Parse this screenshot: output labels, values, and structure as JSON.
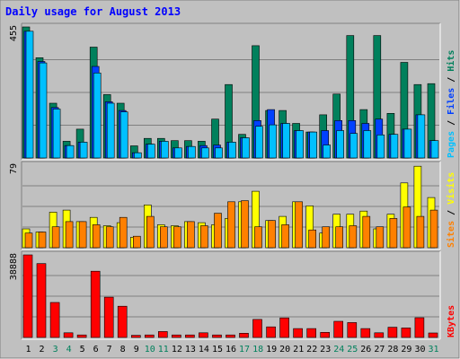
{
  "title": "Daily usage for August 2013",
  "colors": {
    "background": "#c0c0c0",
    "frame": "#808080",
    "title": "#0000ff",
    "hits": "#00805c",
    "files": "#0040ff",
    "pages": "#00c0ff",
    "visits": "#ffff00",
    "sites": "#ff8000",
    "kbytes": "#ff0000",
    "weekend_day": "#00805c",
    "weekday": "#000000"
  },
  "chart_data": [
    {
      "type": "bar",
      "panel": "top",
      "max_label": "455",
      "ylim": [
        0,
        455
      ],
      "legend": [
        {
          "text": "Pages",
          "color": "#00c0ff"
        },
        {
          "text": " / ",
          "color": "#000000"
        },
        {
          "text": "Files",
          "color": "#0040ff"
        },
        {
          "text": " / ",
          "color": "#000000"
        },
        {
          "text": "Hits",
          "color": "#00805c"
        }
      ],
      "categories": [
        "1",
        "2",
        "3",
        "4",
        "5",
        "6",
        "7",
        "8",
        "9",
        "10",
        "11",
        "12",
        "13",
        "14",
        "15",
        "16",
        "17",
        "18",
        "19",
        "20",
        "21",
        "22",
        "23",
        "24",
        "25",
        "26",
        "27",
        "28",
        "29",
        "30",
        "31"
      ],
      "series": [
        {
          "key": "hits",
          "color": "#00805c",
          "values": [
            455,
            348,
            190,
            58,
            100,
            385,
            220,
            190,
            42,
            68,
            68,
            60,
            60,
            58,
            135,
            255,
            82,
            390,
            165,
            165,
            120,
            90,
            150,
            222,
            425,
            168,
            425,
            155,
            332,
            255,
            258
          ]
        },
        {
          "key": "files",
          "color": "#0040ff",
          "values": [
            440,
            335,
            175,
            43,
            55,
            318,
            195,
            165,
            18,
            48,
            58,
            35,
            40,
            43,
            45,
            55,
            70,
            130,
            168,
            120,
            95,
            90,
            95,
            130,
            130,
            120,
            135,
            82,
            100,
            150,
            60
          ]
        },
        {
          "key": "pages",
          "color": "#00c0ff",
          "values": [
            440,
            330,
            170,
            43,
            55,
            295,
            190,
            160,
            18,
            48,
            58,
            35,
            40,
            35,
            35,
            55,
            70,
            110,
            115,
            120,
            95,
            90,
            45,
            95,
            85,
            95,
            80,
            82,
            100,
            150,
            60
          ]
        }
      ]
    },
    {
      "type": "bar",
      "panel": "middle",
      "max_label": "79",
      "ylim": [
        0,
        79
      ],
      "legend": [
        {
          "text": "Sites",
          "color": "#ff8000"
        },
        {
          "text": " / ",
          "color": "#000000"
        },
        {
          "text": "Visits",
          "color": "#ffff00"
        }
      ],
      "categories": [
        "1",
        "2",
        "3",
        "4",
        "5",
        "6",
        "7",
        "8",
        "9",
        "10",
        "11",
        "12",
        "13",
        "14",
        "15",
        "16",
        "17",
        "18",
        "19",
        "20",
        "21",
        "22",
        "23",
        "24",
        "25",
        "26",
        "27",
        "28",
        "29",
        "30",
        "31"
      ],
      "series": [
        {
          "key": "visits",
          "color": "#ffff00",
          "values": [
            18,
            15,
            34,
            36,
            25,
            29,
            21,
            24,
            10,
            41,
            22,
            21,
            25,
            24,
            22,
            28,
            44,
            54,
            26,
            30,
            44,
            40,
            14,
            32,
            32,
            35,
            18,
            32,
            62,
            78,
            48
          ]
        },
        {
          "key": "sites",
          "color": "#ff8000",
          "values": [
            14,
            15,
            20,
            25,
            25,
            22,
            20,
            29,
            11,
            30,
            20,
            20,
            25,
            21,
            33,
            44,
            45,
            20,
            26,
            22,
            44,
            17,
            20,
            20,
            21,
            30,
            20,
            28,
            39,
            30,
            36
          ]
        }
      ]
    },
    {
      "type": "bar",
      "panel": "bottom",
      "max_label": "38888",
      "ylim": [
        0,
        38888
      ],
      "legend": [
        {
          "text": "KBytes",
          "color": "#ff0000"
        }
      ],
      "categories": [
        "1",
        "2",
        "3",
        "4",
        "5",
        "6",
        "7",
        "8",
        "9",
        "10",
        "11",
        "12",
        "13",
        "14",
        "15",
        "16",
        "17",
        "18",
        "19",
        "20",
        "21",
        "22",
        "23",
        "24",
        "25",
        "26",
        "27",
        "28",
        "29",
        "30",
        "31"
      ],
      "series": [
        {
          "key": "kbytes",
          "color": "#ff0000",
          "values": [
            38888,
            34800,
            16500,
            2200,
            1200,
            31200,
            19000,
            14700,
            1000,
            1200,
            2800,
            1200,
            1200,
            2200,
            1200,
            1200,
            2000,
            8500,
            5000,
            9200,
            4200,
            4200,
            2400,
            7600,
            7000,
            4200,
            2200,
            4800,
            4500,
            9300,
            2100
          ]
        }
      ]
    }
  ],
  "days": [
    {
      "label": "1",
      "weekend": false
    },
    {
      "label": "2",
      "weekend": false
    },
    {
      "label": "3",
      "weekend": true
    },
    {
      "label": "4",
      "weekend": true
    },
    {
      "label": "5",
      "weekend": false
    },
    {
      "label": "6",
      "weekend": false
    },
    {
      "label": "7",
      "weekend": false
    },
    {
      "label": "8",
      "weekend": false
    },
    {
      "label": "9",
      "weekend": false
    },
    {
      "label": "10",
      "weekend": true
    },
    {
      "label": "11",
      "weekend": true
    },
    {
      "label": "12",
      "weekend": false
    },
    {
      "label": "13",
      "weekend": false
    },
    {
      "label": "14",
      "weekend": false
    },
    {
      "label": "15",
      "weekend": false
    },
    {
      "label": "16",
      "weekend": false
    },
    {
      "label": "17",
      "weekend": true
    },
    {
      "label": "18",
      "weekend": true
    },
    {
      "label": "19",
      "weekend": false
    },
    {
      "label": "20",
      "weekend": false
    },
    {
      "label": "21",
      "weekend": false
    },
    {
      "label": "22",
      "weekend": false
    },
    {
      "label": "23",
      "weekend": false
    },
    {
      "label": "24",
      "weekend": true
    },
    {
      "label": "25",
      "weekend": true
    },
    {
      "label": "26",
      "weekend": false
    },
    {
      "label": "27",
      "weekend": false
    },
    {
      "label": "28",
      "weekend": false
    },
    {
      "label": "29",
      "weekend": false
    },
    {
      "label": "30",
      "weekend": false
    },
    {
      "label": "31",
      "weekend": true
    }
  ]
}
